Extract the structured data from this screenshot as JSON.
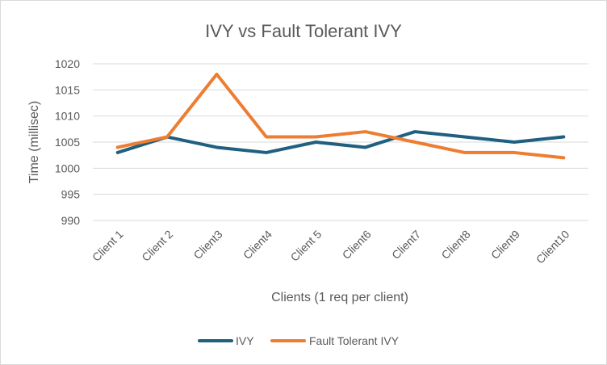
{
  "chart_data": {
    "type": "line",
    "title": "IVY vs  Fault Tolerant IVY",
    "xlabel": "Clients (1 req per client)",
    "ylabel": "Time (millisec)",
    "categories": [
      "Client 1",
      "Client 2",
      "Client3",
      "Client4",
      "Client 5",
      "Client6",
      "Client7",
      "Client8",
      "Client9",
      "Client10"
    ],
    "ylim": [
      990,
      1020
    ],
    "yticks": [
      990,
      995,
      1000,
      1005,
      1010,
      1015,
      1020
    ],
    "grid": true,
    "legend_position": "bottom",
    "series": [
      {
        "name": "IVY",
        "color": "#1f5f7f",
        "values": [
          1003,
          1006,
          1004,
          1003,
          1005,
          1004,
          1007,
          1006,
          1005,
          1006
        ]
      },
      {
        "name": "Fault Tolerant IVY",
        "color": "#ed7d31",
        "values": [
          1004,
          1006,
          1018,
          1006,
          1006,
          1007,
          1005,
          1003,
          1003,
          1002
        ]
      }
    ]
  }
}
